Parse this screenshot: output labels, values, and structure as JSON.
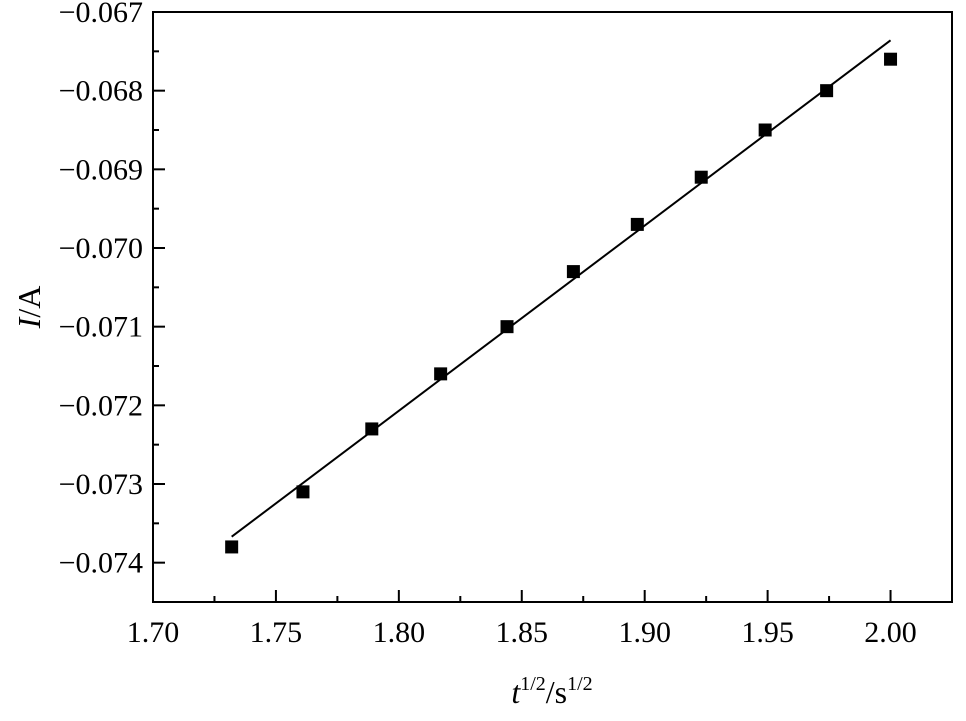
{
  "chart_data": {
    "type": "scatter",
    "title": "",
    "xlabel": {
      "var": "t",
      "var_sup": "1/2",
      "sep": "/",
      "unit": "s",
      "unit_sup": "1/2"
    },
    "ylabel": {
      "var": "I",
      "sep": "/",
      "unit": "A"
    },
    "xlim": [
      1.7,
      2.025
    ],
    "ylim": [
      -0.0745,
      -0.067
    ],
    "x_ticks": [
      1.7,
      1.75,
      1.8,
      1.85,
      1.9,
      1.95,
      2.0
    ],
    "x_tick_labels": [
      "1.70",
      "1.75",
      "1.80",
      "1.85",
      "1.90",
      "1.95",
      "2.00"
    ],
    "y_ticks": [
      -0.067,
      -0.068,
      -0.069,
      -0.07,
      -0.071,
      -0.072,
      -0.073,
      -0.074
    ],
    "y_tick_labels": [
      "−0.067",
      "−0.068",
      "−0.069",
      "−0.070",
      "−0.071",
      "−0.072",
      "−0.073",
      "−0.074"
    ],
    "grid": false,
    "series": [
      {
        "marker": "square",
        "color": "#000000",
        "x": [
          1.732,
          1.761,
          1.789,
          1.817,
          1.844,
          1.871,
          1.897,
          1.923,
          1.949,
          1.974,
          2.0
        ],
        "y": [
          -0.0738,
          -0.0731,
          -0.0723,
          -0.0716,
          -0.071,
          -0.0703,
          -0.0697,
          -0.0691,
          -0.0685,
          -0.068,
          -0.0676
        ]
      }
    ],
    "fit_line": {
      "color": "#000000",
      "x": [
        1.732,
        2.0
      ],
      "y": [
        -0.07367,
        -0.06736
      ]
    }
  }
}
